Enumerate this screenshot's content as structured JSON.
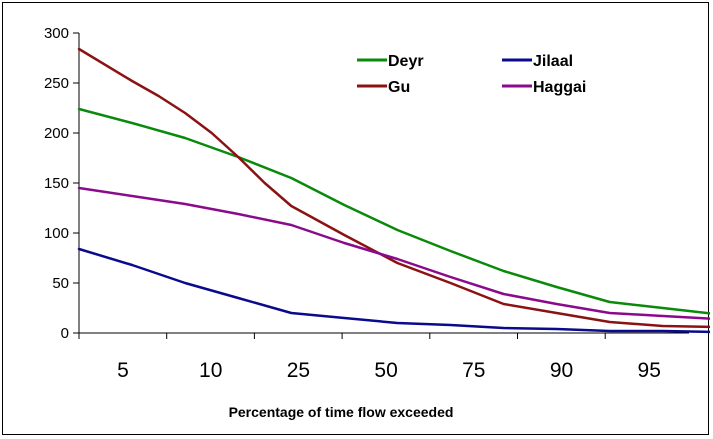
{
  "chart_data": {
    "type": "line",
    "title": "",
    "xlabel": "Percentage of time flow exceeded",
    "ylabel": "",
    "categories": [
      "5",
      "10",
      "25",
      "50",
      "75",
      "90",
      "95"
    ],
    "ylim": [
      0,
      300
    ],
    "yticks": [
      0,
      50,
      100,
      150,
      200,
      250,
      300
    ],
    "grid": false,
    "legend_position": "top-right",
    "series": [
      {
        "name": "Deyr",
        "color": "#0a8a0a",
        "x": [
          0,
          1,
          2,
          3,
          4,
          5,
          6,
          7,
          8,
          9,
          10,
          11,
          12
        ],
        "values": [
          224,
          210,
          195,
          176,
          155,
          128,
          103,
          82,
          62,
          46,
          31,
          25,
          19
        ]
      },
      {
        "name": "Jilaal",
        "color": "#0a0a8c",
        "x": [
          0,
          1,
          2,
          3,
          4,
          5,
          6,
          7,
          8,
          9,
          10,
          11,
          12
        ],
        "values": [
          84,
          68,
          50,
          35,
          20,
          15,
          10,
          8,
          5,
          4,
          2,
          2,
          1
        ]
      },
      {
        "name": "Gu",
        "color": "#8b1212",
        "x": [
          0,
          1,
          1.5,
          2,
          2.5,
          3,
          3.5,
          4,
          5,
          6,
          7,
          8,
          9,
          10,
          11,
          12
        ],
        "values": [
          284,
          252,
          237,
          220,
          200,
          176,
          150,
          127,
          98,
          70,
          50,
          29,
          20,
          11,
          7,
          6
        ]
      },
      {
        "name": "Haggai",
        "color": "#8b0a8b",
        "x": [
          0,
          1,
          2,
          3,
          4,
          5,
          6,
          7,
          8,
          9,
          10,
          11,
          12
        ],
        "values": [
          145,
          137,
          129,
          119,
          108,
          90,
          74,
          56,
          39,
          29,
          20,
          17,
          14
        ]
      }
    ]
  }
}
